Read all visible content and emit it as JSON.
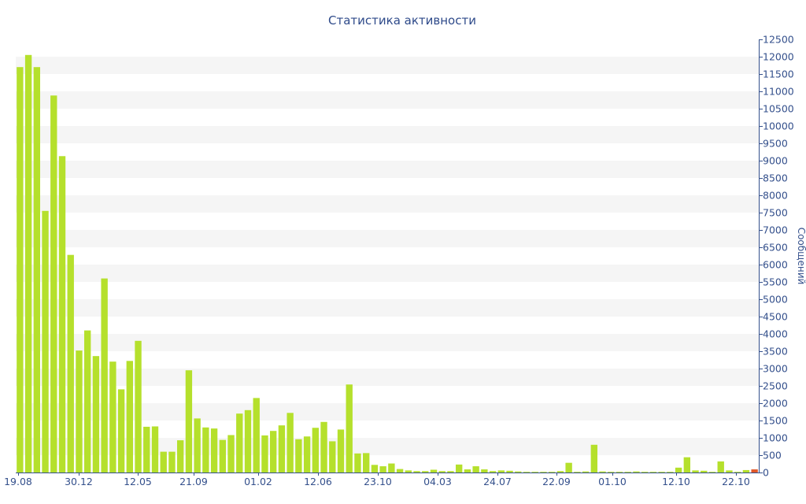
{
  "chart_data": {
    "type": "bar",
    "title": "Статистика активности",
    "xlabel": "",
    "ylabel": "Сообщений",
    "ylim": [
      0,
      12500
    ],
    "y_ticks": [
      0,
      500,
      1000,
      1500,
      2000,
      2500,
      3000,
      3500,
      4000,
      4500,
      5000,
      5500,
      6000,
      6500,
      7000,
      7500,
      8000,
      8500,
      9000,
      9500,
      10000,
      10500,
      11000,
      11500,
      12000,
      12500
    ],
    "x_tick_labels": [
      "19.08",
      "30.12",
      "12.05",
      "21.09",
      "01.02",
      "12.06",
      "23.10",
      "04.03",
      "24.07",
      "22.09",
      "01.10",
      "12.10",
      "22.10"
    ],
    "grid": "horizontal alternating bands",
    "legend": "none",
    "colors": {
      "bar": "#b5e02c",
      "last_bar": "#e0582a",
      "band": "#f5f5f5",
      "axis": "#34508c",
      "title": "#2e4a8a"
    },
    "values": [
      11700,
      12050,
      11700,
      7550,
      10880,
      9130,
      6280,
      3520,
      4100,
      3360,
      5600,
      3200,
      2400,
      3220,
      3800,
      1320,
      1330,
      600,
      600,
      930,
      2950,
      1560,
      1300,
      1270,
      940,
      1080,
      1700,
      1800,
      2150,
      1070,
      1200,
      1360,
      1720,
      960,
      1040,
      1290,
      1460,
      900,
      1240,
      2540,
      550,
      560,
      220,
      180,
      260,
      100,
      60,
      40,
      40,
      80,
      40,
      40,
      230,
      90,
      180,
      90,
      40,
      60,
      50,
      30,
      20,
      20,
      20,
      20,
      40,
      280,
      20,
      30,
      800,
      30,
      20,
      20,
      20,
      30,
      20,
      20,
      20,
      20,
      140,
      440,
      60,
      50,
      20,
      320,
      60,
      20,
      70,
      90
    ]
  }
}
